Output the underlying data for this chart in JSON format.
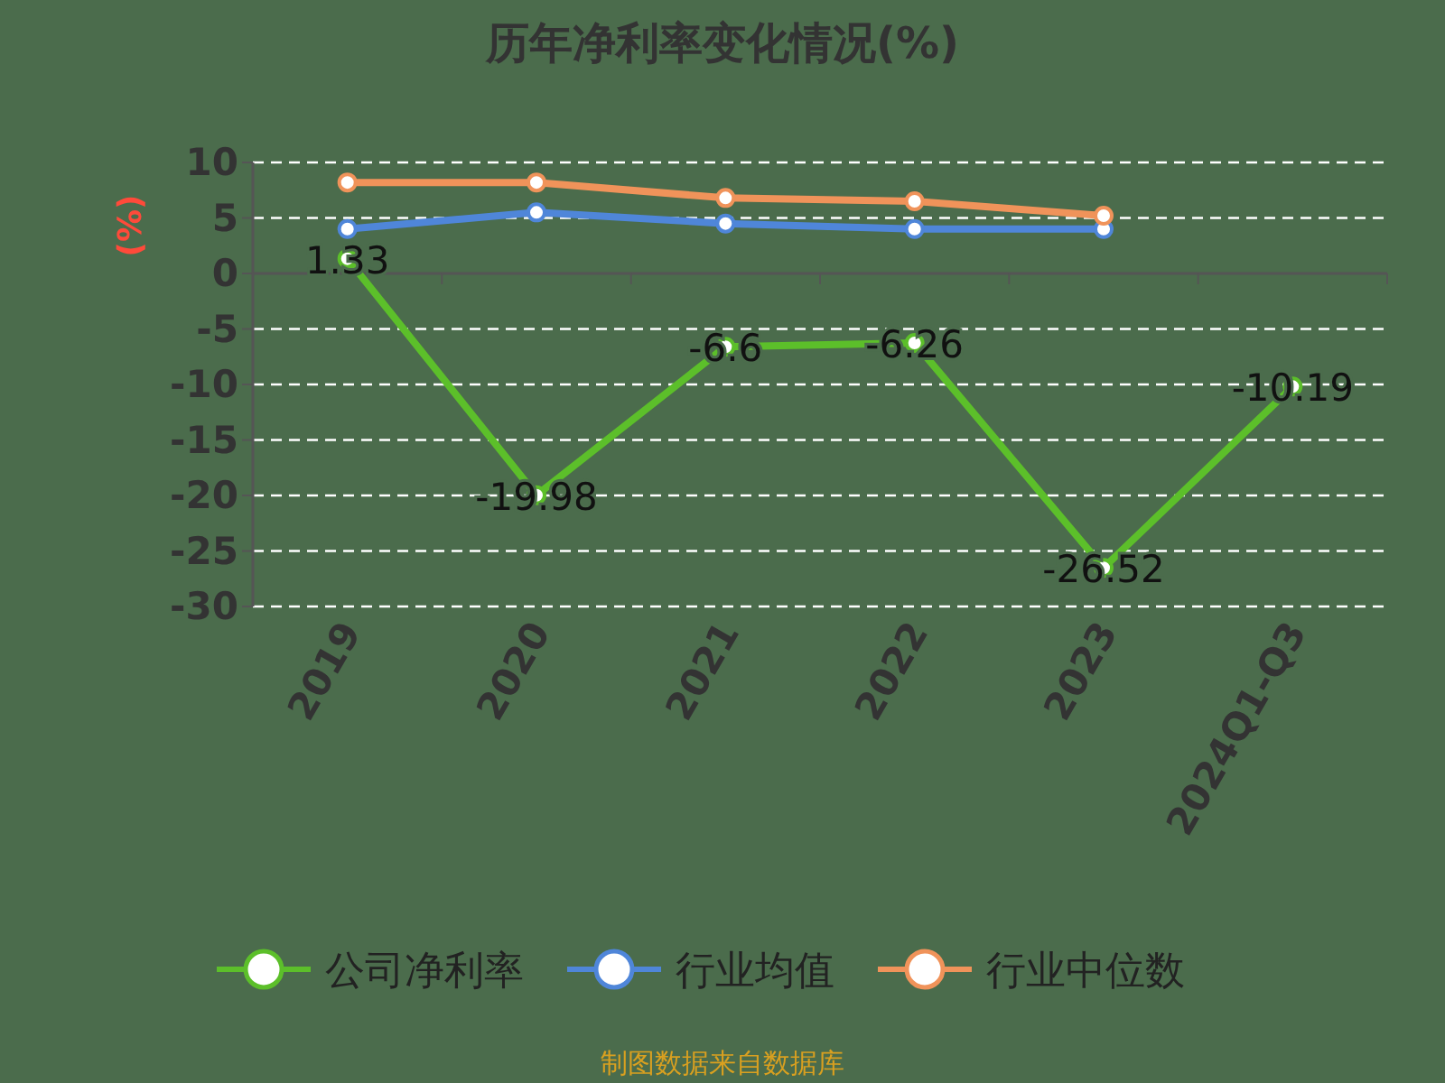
{
  "chart_data": {
    "type": "line",
    "title": "历年净利率变化情况(%)",
    "ylabel": "(%)",
    "categories": [
      "2019",
      "2020",
      "2021",
      "2022",
      "2023",
      "2024Q1-Q3"
    ],
    "series": [
      {
        "name": "公司净利率",
        "color": "#5cbf2a",
        "values": [
          1.33,
          -19.98,
          -6.6,
          -6.26,
          -26.52,
          -10.19
        ],
        "value_labels": [
          "1.33",
          "-19.98",
          "-6.6",
          "-6.26",
          "-26.52",
          "-10.19"
        ]
      },
      {
        "name": "行业均值",
        "color": "#4f86d9",
        "values": [
          4.0,
          5.5,
          4.5,
          4.0,
          4.0,
          null
        ]
      },
      {
        "name": "行业中位数",
        "color": "#f0935a",
        "values": [
          8.2,
          8.2,
          6.8,
          6.5,
          5.2,
          null
        ]
      }
    ],
    "ylim": [
      -30,
      10
    ],
    "yticks": [
      -30,
      -25,
      -20,
      -15,
      -10,
      -5,
      0,
      5,
      10
    ],
    "grid": "y",
    "legend": "bottom",
    "marker": "circle",
    "annotations": [
      "制图数据来自数据库"
    ]
  }
}
